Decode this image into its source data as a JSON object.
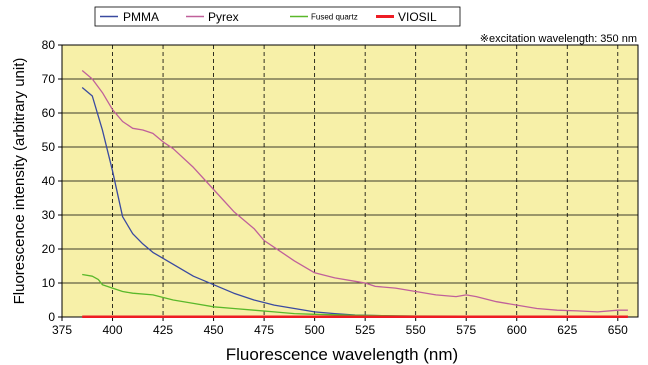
{
  "chart_data": {
    "type": "line",
    "title": "",
    "annotation": "※excitation wavelength: 350 nm",
    "xlabel": "Fluorescence wavelength (nm)",
    "ylabel": "Fluorescence intensity (arbitrary unit)",
    "xlim": [
      375,
      660
    ],
    "ylim": [
      0,
      80
    ],
    "xticks": [
      375,
      400,
      425,
      450,
      475,
      500,
      525,
      550,
      575,
      600,
      625,
      650
    ],
    "yticks": [
      0,
      10,
      20,
      30,
      40,
      50,
      60,
      70,
      80
    ],
    "grid": {
      "x": "dashed",
      "y": "solid"
    },
    "plot_background": "#f7f0a8",
    "legend_position": "top",
    "series": [
      {
        "name": "PMMA",
        "color": "#3a4aa0",
        "x": [
          385,
          390,
          395,
          400,
          405,
          410,
          415,
          420,
          430,
          440,
          450,
          460,
          470,
          480,
          490,
          500,
          510,
          520,
          540,
          560,
          600,
          655
        ],
        "y": [
          67.5,
          65,
          55,
          43,
          29.5,
          24.5,
          21.5,
          19,
          15.5,
          12,
          9.5,
          7,
          5,
          3.5,
          2.5,
          1.5,
          1,
          0.6,
          0.3,
          0.2,
          0.2,
          0.1
        ]
      },
      {
        "name": "Pyrex",
        "color": "#c0609a",
        "x": [
          385,
          390,
          395,
          400,
          405,
          410,
          415,
          420,
          425,
          430,
          440,
          450,
          460,
          470,
          475,
          480,
          490,
          500,
          510,
          520,
          525,
          530,
          540,
          550,
          560,
          570,
          575,
          580,
          590,
          600,
          610,
          620,
          630,
          640,
          650,
          655
        ],
        "y": [
          72.5,
          70,
          66,
          61,
          57.5,
          55.5,
          55,
          54,
          51.5,
          49.5,
          44,
          37.5,
          31,
          26,
          22.5,
          20.5,
          16.5,
          13,
          11.5,
          10.5,
          10,
          9,
          8.5,
          7.5,
          6.5,
          6,
          6.5,
          6,
          4.5,
          3.5,
          2.5,
          2,
          1.8,
          1.5,
          2,
          2
        ]
      },
      {
        "name": "Fused quartz",
        "color": "#5ab82a",
        "x": [
          385,
          390,
          393,
          395,
          400,
          405,
          410,
          420,
          430,
          440,
          450,
          460,
          470,
          480,
          490,
          500,
          520,
          550,
          600,
          655
        ],
        "y": [
          12.5,
          12,
          11,
          9.5,
          8.5,
          7.5,
          7,
          6.5,
          5,
          4,
          3,
          2.5,
          2,
          1.5,
          1,
          0.8,
          0.5,
          0.3,
          0.2,
          0.2
        ]
      },
      {
        "name": "VIOSIL",
        "color": "#ee1c24",
        "x": [
          385,
          655
        ],
        "y": [
          0.1,
          0.1
        ]
      }
    ]
  }
}
